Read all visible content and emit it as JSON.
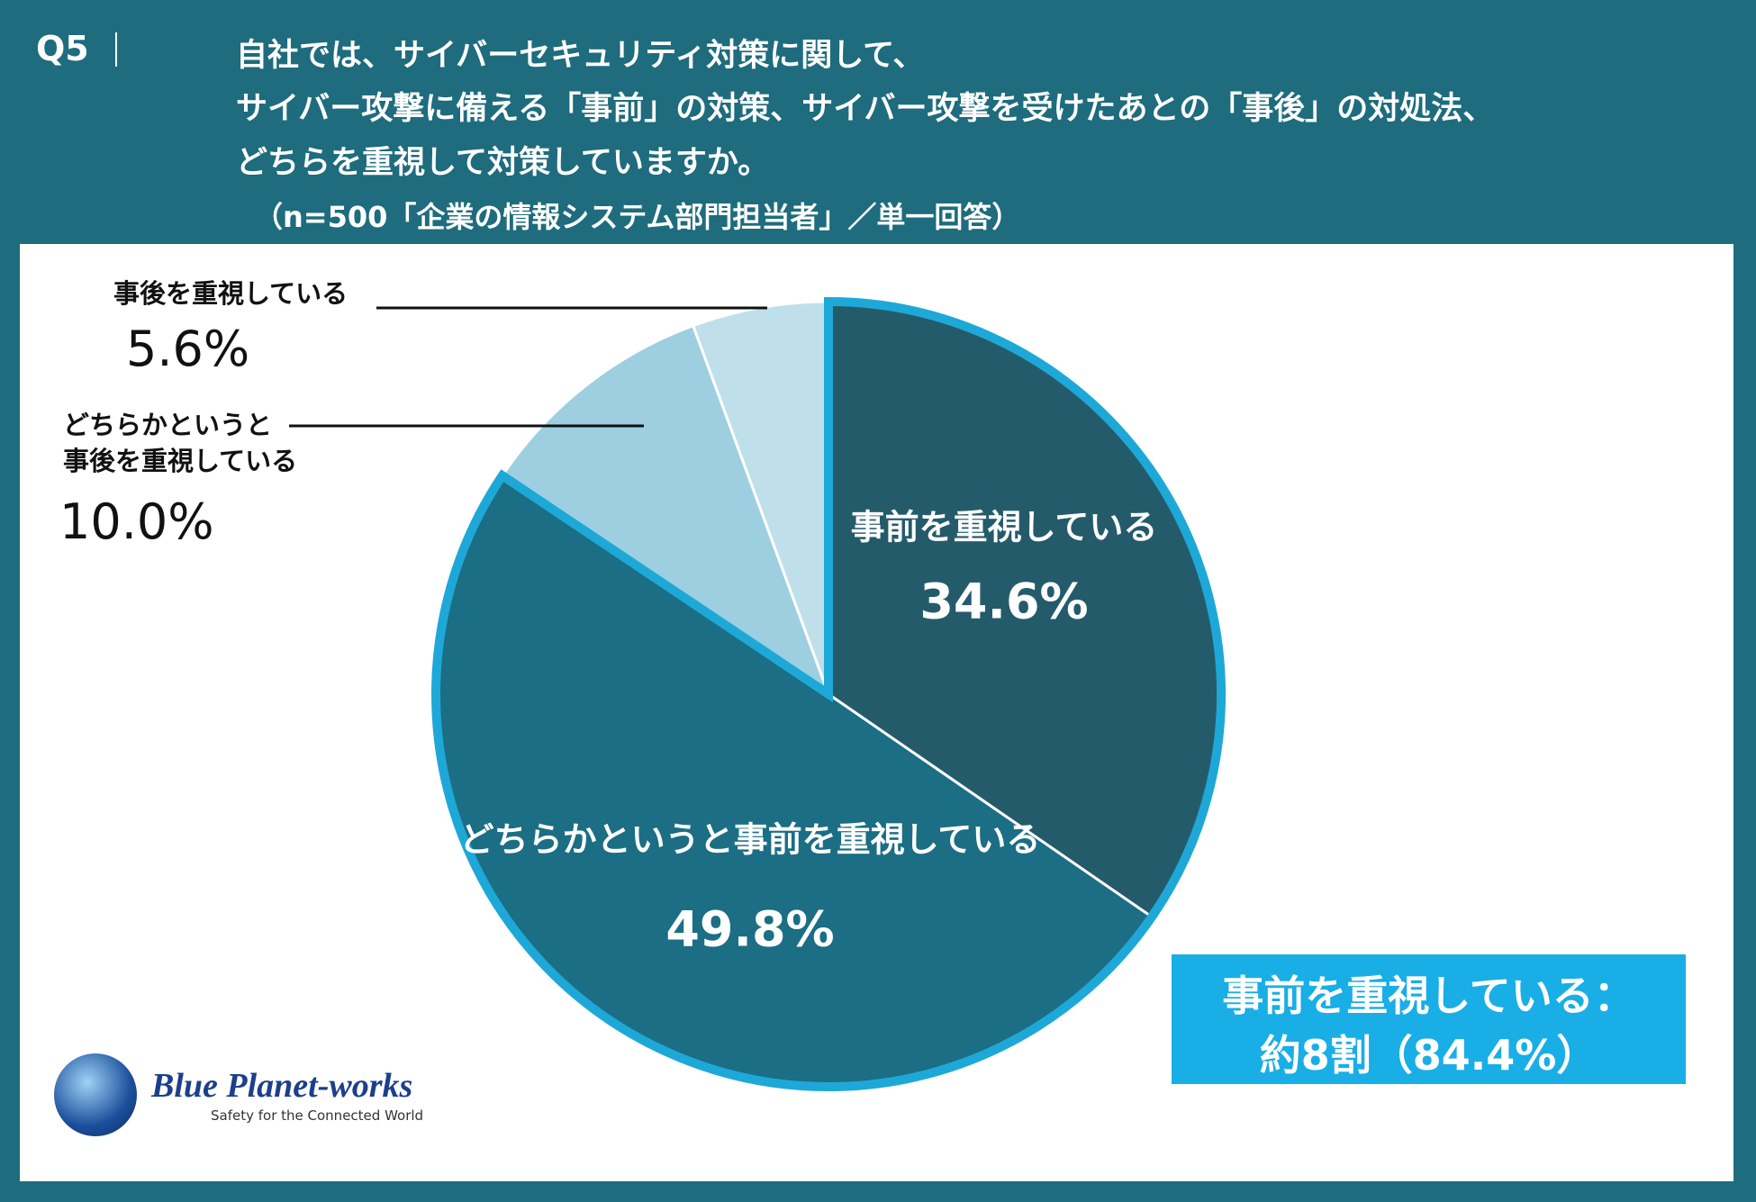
{
  "chart_data": {
    "type": "pie",
    "label": "Q5",
    "title": [
      "自社では、サイバーセキュリティ対策に関して、",
      "サイバー攻撃に備える「事前」の対策、サイバー攻撃を受けたあとの「事後」の対処法、",
      "どちらを重視して対策していますか。"
    ],
    "subtitle": "（n=500「企業の情報システム部門担当者」／単一回答）",
    "categories": [
      "事前を重視している",
      "どちらかというと事前を重視している",
      "どちらかというと\n事後を重視している",
      "事後を重視している"
    ],
    "values": [
      34.6,
      49.8,
      10.0,
      5.6
    ],
    "value_labels": [
      "34.6%",
      "49.8%",
      "10.0%",
      "5.6%"
    ],
    "colors": [
      "#245b6b",
      "#1b6e84",
      "#9dcfe0",
      "#bfe0ea"
    ],
    "highlight_color": "#1ea8d8",
    "annotations": [
      "事前を重視している：",
      "約8割（84.4%）"
    ]
  },
  "logo": {
    "name": "Blue Planet-works",
    "tagline": "Safety for the Connected World"
  }
}
